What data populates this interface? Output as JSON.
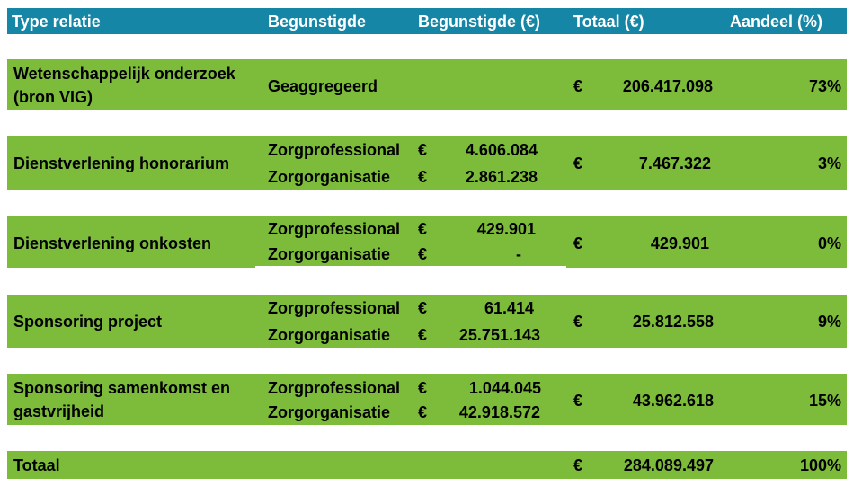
{
  "header": {
    "type_relatie": "Type relatie",
    "begunstigde": "Begunstigde",
    "begunstigde_eur": "Begunstigde (€)",
    "totaal_eur": "Totaal (€)",
    "aandeel_pct": "Aandeel (%)"
  },
  "currency_symbol": "€",
  "rows": [
    {
      "type": "Wetenschappelijk onderzoek (bron VIG)",
      "beneficiary": "Geaggregeerd",
      "total": "206.417.098",
      "share": "73%"
    },
    {
      "type": "Dienstverlening honorarium",
      "sub": [
        {
          "beneficiary": "Zorgprofessional",
          "amount": "4.606.084"
        },
        {
          "beneficiary": "Zorgorganisatie",
          "amount": "2.861.238"
        }
      ],
      "total": "7.467.322",
      "share": "3%"
    },
    {
      "type": "Dienstverlening onkosten",
      "sub": [
        {
          "beneficiary": "Zorgprofessional",
          "amount": "429.901"
        },
        {
          "beneficiary": "Zorgorganisatie",
          "amount": "-"
        }
      ],
      "total": "429.901",
      "share": "0%"
    },
    {
      "type": "Sponsoring project",
      "sub": [
        {
          "beneficiary": "Zorgprofessional",
          "amount": "61.414"
        },
        {
          "beneficiary": "Zorgorganisatie",
          "amount": "25.751.143"
        }
      ],
      "total": "25.812.558",
      "share": "9%"
    },
    {
      "type": "Sponsoring samenkomst en gastvrijheid",
      "sub": [
        {
          "beneficiary": "Zorgprofessional",
          "amount": "1.044.045"
        },
        {
          "beneficiary": "Zorgorganisatie",
          "amount": "42.918.572"
        }
      ],
      "total": "43.962.618",
      "share": "15%"
    }
  ],
  "totals_row": {
    "label": "Totaal",
    "total": "284.089.497",
    "share": "100%"
  },
  "colors": {
    "header_bg": "#1686a6",
    "header_text": "#ffffff",
    "band_bg": "#7dbb3a",
    "text": "#000000"
  }
}
